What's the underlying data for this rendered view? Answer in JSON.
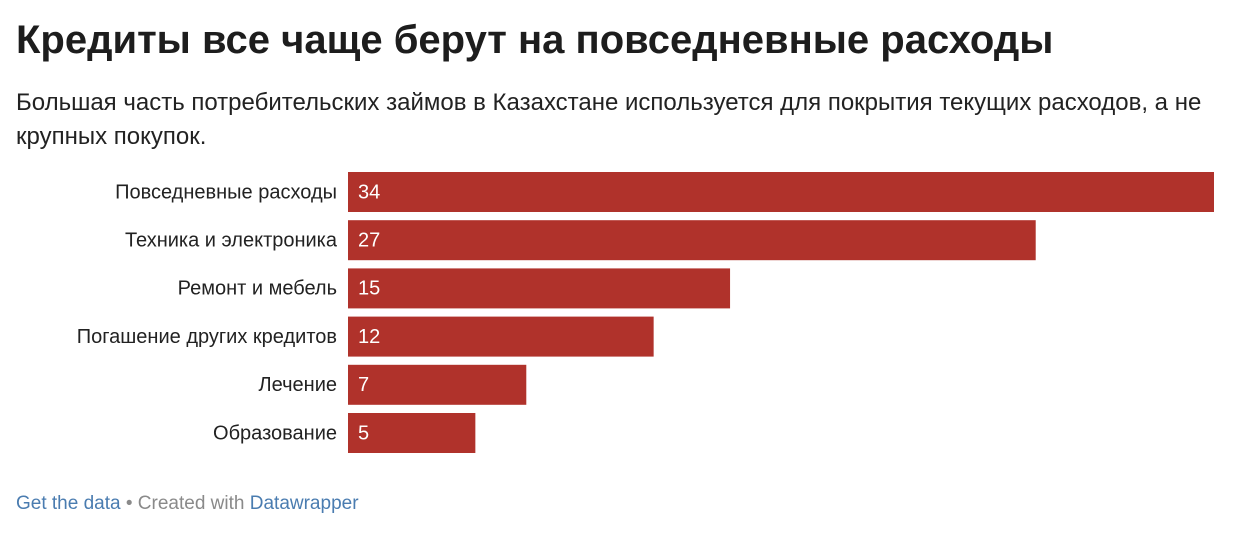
{
  "chart_data": {
    "type": "bar",
    "orientation": "horizontal",
    "title": "Кредиты все чаще берут на повседневные расходы",
    "subtitle": "Большая часть потребительских займов в Казахстане используется для покрытия текущих расходов, а не крупных покупок.",
    "categories": [
      "Повседневные расходы",
      "Техника и электроника",
      "Ремонт и мебель",
      "Погашение других кредитов",
      "Лечение",
      "Образование"
    ],
    "values": [
      34,
      27,
      15,
      12,
      7,
      5
    ],
    "color": "#b0322b"
  },
  "footer": {
    "get_data": "Get the data",
    "separator": "•",
    "created_with": "Created with",
    "tool": "Datawrapper"
  }
}
